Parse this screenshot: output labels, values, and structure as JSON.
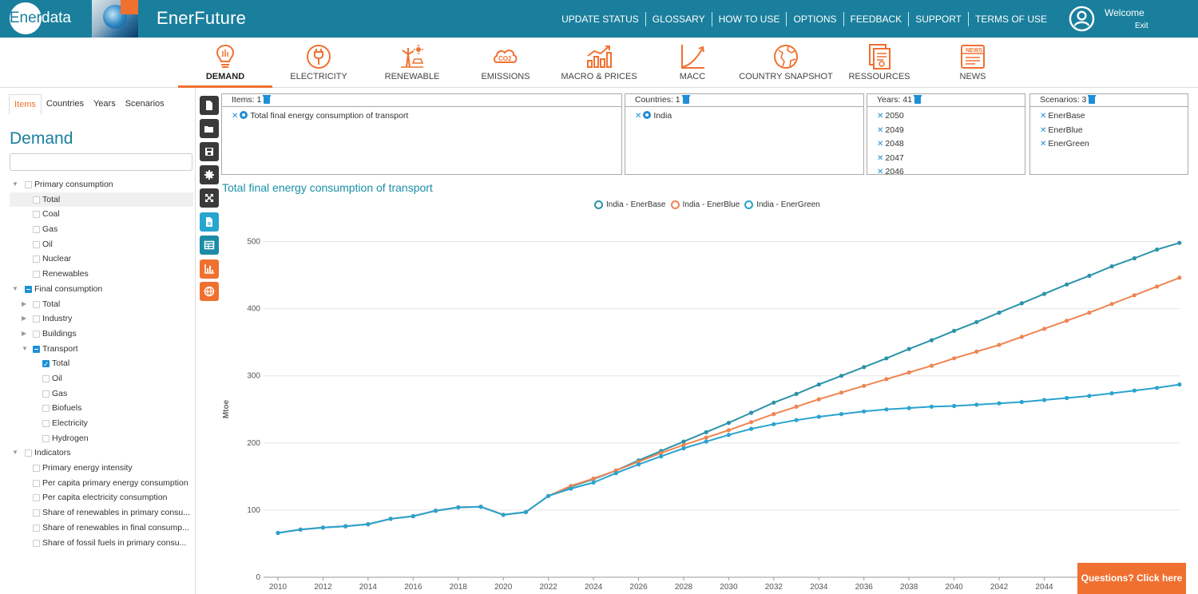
{
  "header": {
    "logo_a": "Ener",
    "logo_b": "data",
    "app_title": "EnerFuture",
    "nav": [
      "UPDATE STATUS",
      "GLOSSARY",
      "HOW TO USE",
      "OPTIONS",
      "FEEDBACK",
      "SUPPORT",
      "TERMS OF USE"
    ],
    "welcome": "Welcome",
    "exit": "Exit"
  },
  "modules": [
    {
      "label": "DEMAND",
      "icon": "lightbulb-icon",
      "active": true
    },
    {
      "label": "ELECTRICITY",
      "icon": "plug-icon"
    },
    {
      "label": "RENEWABLE",
      "icon": "wind-sun-icon"
    },
    {
      "label": "EMISSIONS",
      "icon": "co2-icon"
    },
    {
      "label": "MACRO & PRICES",
      "icon": "bar-trend-icon"
    },
    {
      "label": "MACC",
      "icon": "curve-icon"
    },
    {
      "label": "COUNTRY SNAPSHOT",
      "icon": "globe-icon"
    },
    {
      "label": "RESSOURCES",
      "icon": "documents-icon"
    },
    {
      "label": "NEWS",
      "icon": "news-icon"
    }
  ],
  "sidebar": {
    "tabs": [
      "Items",
      "Countries",
      "Years",
      "Scenarios"
    ],
    "active_tab": "Items",
    "heading": "Demand",
    "search_placeholder": "",
    "tree": [
      {
        "label": "Primary consumption",
        "level": 0,
        "arrow": "down",
        "state": "empty"
      },
      {
        "label": "Total",
        "level": 1,
        "state": "empty",
        "highlight": true
      },
      {
        "label": "Coal",
        "level": 1,
        "state": "empty"
      },
      {
        "label": "Gas",
        "level": 1,
        "state": "empty"
      },
      {
        "label": "Oil",
        "level": 1,
        "state": "empty"
      },
      {
        "label": "Nuclear",
        "level": 1,
        "state": "empty"
      },
      {
        "label": "Renewables",
        "level": 1,
        "state": "empty"
      },
      {
        "label": "Final consumption",
        "level": 0,
        "arrow": "down",
        "state": "partial"
      },
      {
        "label": "Total",
        "level": 1,
        "arrow": "right",
        "state": "empty"
      },
      {
        "label": "Industry",
        "level": 1,
        "arrow": "right",
        "state": "empty"
      },
      {
        "label": "Buildings",
        "level": 1,
        "arrow": "right",
        "state": "empty"
      },
      {
        "label": "Transport",
        "level": 1,
        "arrow": "down",
        "state": "partial"
      },
      {
        "label": "Total",
        "level": 2,
        "state": "checked"
      },
      {
        "label": "Oil",
        "level": 2,
        "state": "empty"
      },
      {
        "label": "Gas",
        "level": 2,
        "state": "empty"
      },
      {
        "label": "Biofuels",
        "level": 2,
        "state": "empty"
      },
      {
        "label": "Electricity",
        "level": 2,
        "state": "empty"
      },
      {
        "label": "Hydrogen",
        "level": 2,
        "state": "empty"
      },
      {
        "label": "Indicators",
        "level": 0,
        "arrow": "down",
        "state": "empty"
      },
      {
        "label": "Primary energy intensity",
        "level": 1,
        "state": "empty"
      },
      {
        "label": "Per capita primary energy consumption",
        "level": 1,
        "state": "empty"
      },
      {
        "label": "Per capita electricity consumption",
        "level": 1,
        "state": "empty"
      },
      {
        "label": "Share of renewables in primary consu...",
        "level": 1,
        "state": "empty"
      },
      {
        "label": "Share of renewables in final consump...",
        "level": 1,
        "state": "empty"
      },
      {
        "label": "Share of fossil fuels in primary consu...",
        "level": 1,
        "state": "empty"
      }
    ]
  },
  "tools": [
    {
      "name": "new-file-icon",
      "style": "dark"
    },
    {
      "name": "open-folder-icon",
      "style": "dark"
    },
    {
      "name": "save-icon",
      "style": "dark"
    },
    {
      "name": "settings-gear-icon",
      "style": "dark"
    },
    {
      "name": "expand-icon",
      "style": "dark"
    },
    {
      "name": "document-report-icon",
      "style": "blue1"
    },
    {
      "name": "table-view-icon",
      "style": "blue2"
    },
    {
      "name": "chart-view-icon",
      "style": "orange"
    },
    {
      "name": "map-globe-icon",
      "style": "orange"
    }
  ],
  "selections": {
    "items": {
      "header": "Items: 1",
      "values": [
        "Total final energy consumption of transport"
      ]
    },
    "countries": {
      "header": "Countries: 1",
      "values": [
        "India"
      ]
    },
    "years": {
      "header": "Years: 41",
      "values": [
        "2050",
        "2049",
        "2048",
        "2047",
        "2046"
      ]
    },
    "scenarios": {
      "header": "Scenarios: 3",
      "values": [
        "EnerBase",
        "EnerBlue",
        "EnerGreen"
      ]
    }
  },
  "help_button": "Questions? Click here",
  "chart_data": {
    "type": "line",
    "title": "Total final energy consumption of transport",
    "ylabel": "Mtoe",
    "xlabel": "",
    "ylim": [
      0,
      500
    ],
    "yticks": [
      0,
      100,
      200,
      300,
      400,
      500
    ],
    "xticks": [
      "2010",
      "2012",
      "2014",
      "2016",
      "2018",
      "2020",
      "2022",
      "2024",
      "2026",
      "2028",
      "2030",
      "2032",
      "2034",
      "2036",
      "2038",
      "2040",
      "2042",
      "2044"
    ],
    "grid": true,
    "legend_position": "top-center",
    "x": [
      2010,
      2011,
      2012,
      2013,
      2014,
      2015,
      2016,
      2017,
      2018,
      2019,
      2020,
      2021,
      2022,
      2023,
      2024,
      2025,
      2026,
      2027,
      2028,
      2029,
      2030,
      2031,
      2032,
      2033,
      2034,
      2035,
      2036,
      2037,
      2038,
      2039,
      2040,
      2041,
      2042,
      2043,
      2044,
      2045,
      2046,
      2047,
      2048,
      2049,
      2050
    ],
    "series": [
      {
        "name": "India - EnerBase",
        "color": "#2b93a8",
        "values": [
          66,
          71,
          74,
          76,
          79,
          87,
          91,
          99,
          104,
          105,
          93,
          97,
          121,
          135,
          146,
          159,
          174,
          188,
          202,
          216,
          230,
          245,
          260,
          273,
          287,
          300,
          313,
          326,
          340,
          353,
          367,
          380,
          394,
          408,
          422,
          436,
          449,
          463,
          475,
          488,
          498
        ]
      },
      {
        "name": "India - EnerBlue",
        "color": "#ee8552",
        "values": [
          66,
          71,
          74,
          76,
          79,
          87,
          91,
          99,
          104,
          105,
          93,
          97,
          121,
          136,
          147,
          159,
          172,
          185,
          197,
          208,
          219,
          231,
          243,
          254,
          265,
          275,
          285,
          295,
          305,
          315,
          326,
          336,
          346,
          358,
          370,
          382,
          394,
          407,
          420,
          433,
          446
        ]
      },
      {
        "name": "India - EnerGreen",
        "color": "#2aa3cf",
        "values": [
          66,
          71,
          74,
          76,
          79,
          87,
          91,
          99,
          104,
          105,
          93,
          97,
          121,
          132,
          141,
          155,
          168,
          180,
          192,
          202,
          212,
          221,
          228,
          234,
          239,
          243,
          247,
          250,
          252,
          254,
          255,
          257,
          259,
          261,
          264,
          267,
          270,
          274,
          278,
          282,
          287
        ]
      }
    ]
  }
}
